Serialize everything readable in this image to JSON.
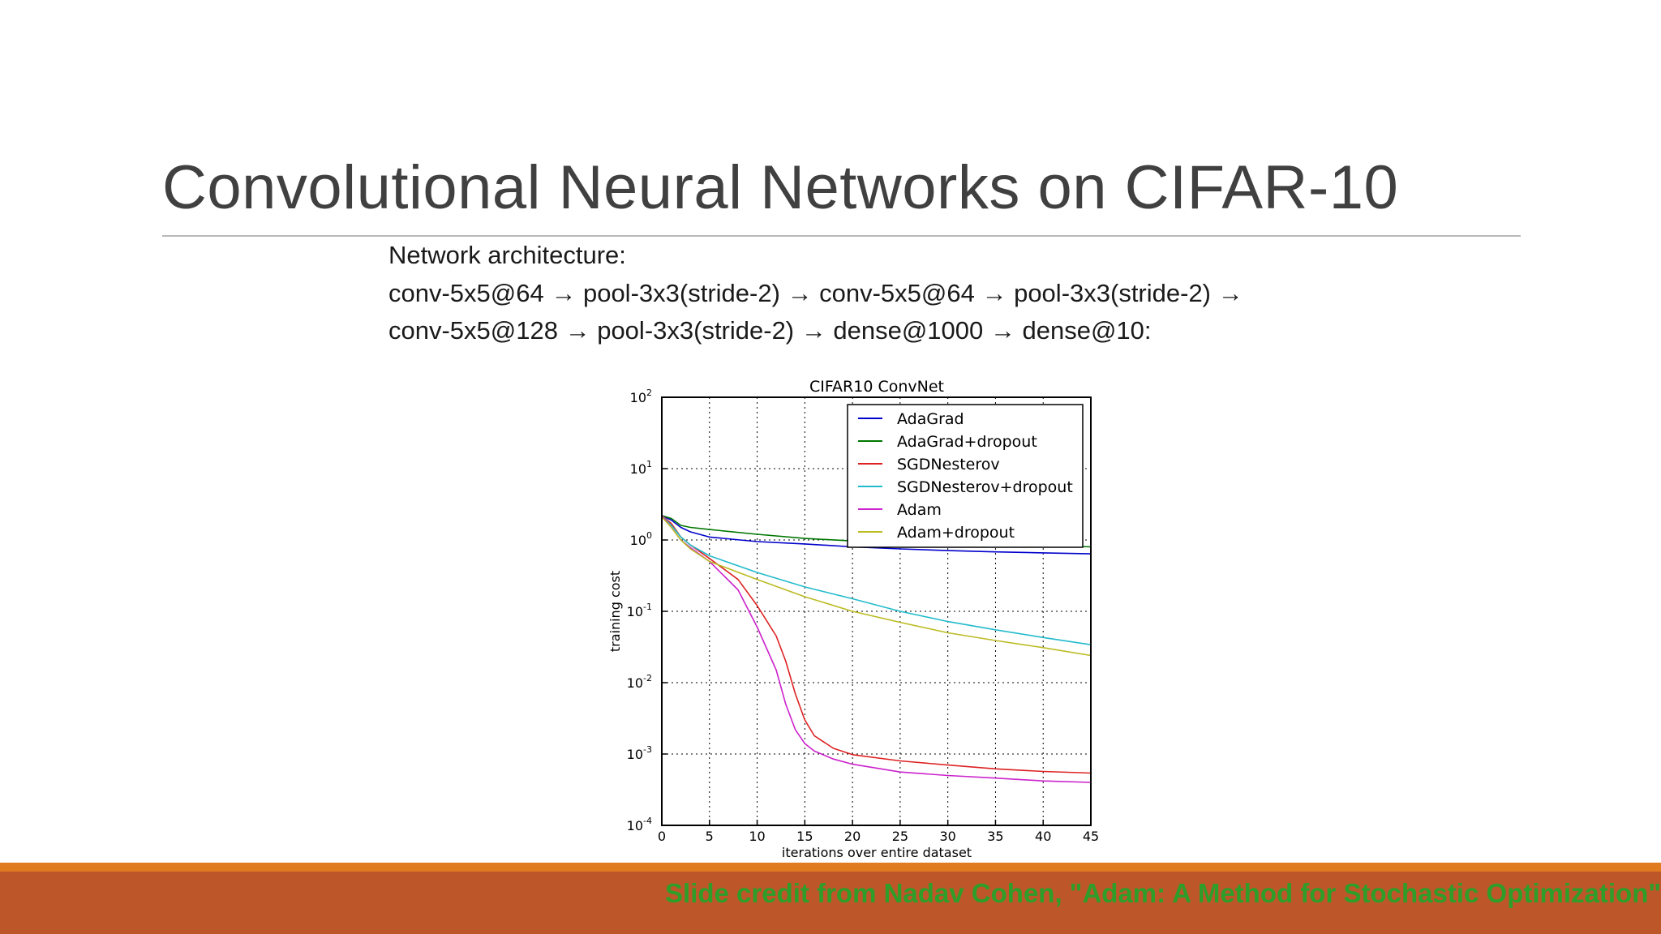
{
  "slide": {
    "title": "Convolutional Neural Networks on CIFAR-10",
    "arch_heading": "Network architecture:",
    "arch_line1": "conv-5x5@64 → pool-3x3(stride-2) → conv-5x5@64 → pool-3x3(stride-2) →",
    "arch_line2": "conv-5x5@128 → pool-3x3(stride-2) → dense@1000 → dense@10:",
    "credit": "Slide credit from Nadav Cohen, \"Adam: A Method for Stochastic Optimization\""
  },
  "colors": {
    "title": "#404040",
    "footer_band": "#bd572a",
    "footer_stripe": "#e07b1f",
    "credit_text": "#2e9d2a"
  },
  "chart_data": {
    "type": "line",
    "title": "CIFAR10 ConvNet",
    "xlabel": "iterations over entire dataset",
    "ylabel": "training cost",
    "xlim": [
      0,
      45
    ],
    "ylim": [
      0.0001,
      100
    ],
    "yscale": "log",
    "grid": true,
    "legend_position": "top-right",
    "x_ticks": [
      "0",
      "5",
      "10",
      "15",
      "20",
      "25",
      "30",
      "35",
      "40",
      "45"
    ],
    "y_ticks": [
      {
        "base": "10",
        "exp": "2",
        "value": 100
      },
      {
        "base": "10",
        "exp": "1",
        "value": 10
      },
      {
        "base": "10",
        "exp": "0",
        "value": 1
      },
      {
        "base": "10",
        "exp": "-1",
        "value": 0.1
      },
      {
        "base": "10",
        "exp": "-2",
        "value": 0.01
      },
      {
        "base": "10",
        "exp": "-3",
        "value": 0.001
      },
      {
        "base": "10",
        "exp": "-4",
        "value": 0.0001
      }
    ],
    "series": [
      {
        "name": "AdaGrad",
        "color": "#0000cc",
        "x": [
          0,
          1,
          2,
          3,
          5,
          10,
          15,
          20,
          25,
          30,
          35,
          40,
          45
        ],
        "y": [
          2.2,
          1.9,
          1.5,
          1.3,
          1.1,
          0.95,
          0.88,
          0.8,
          0.75,
          0.71,
          0.68,
          0.66,
          0.64
        ]
      },
      {
        "name": "AdaGrad+dropout",
        "color": "#007700",
        "x": [
          0,
          1,
          2,
          3,
          5,
          10,
          15,
          20,
          25,
          30,
          35,
          40,
          45
        ],
        "y": [
          2.2,
          2.0,
          1.6,
          1.5,
          1.4,
          1.2,
          1.05,
          0.97,
          0.93,
          0.9,
          0.87,
          0.84,
          0.8
        ]
      },
      {
        "name": "SGDNesterov",
        "color": "#dd2222",
        "x": [
          0,
          1,
          2,
          3,
          5,
          8,
          10,
          12,
          13,
          14,
          15,
          16,
          18,
          20,
          25,
          30,
          35,
          40,
          45
        ],
        "y": [
          2.2,
          1.7,
          1.1,
          0.85,
          0.55,
          0.28,
          0.12,
          0.045,
          0.02,
          0.007,
          0.003,
          0.0018,
          0.0012,
          0.00098,
          0.0008,
          0.0007,
          0.00062,
          0.00057,
          0.00054
        ]
      },
      {
        "name": "SGDNesterov+dropout",
        "color": "#22bbcc",
        "x": [
          0,
          1,
          2,
          3,
          5,
          10,
          15,
          20,
          25,
          30,
          35,
          40,
          45
        ],
        "y": [
          2.2,
          1.6,
          1.1,
          0.85,
          0.6,
          0.35,
          0.22,
          0.15,
          0.1,
          0.072,
          0.055,
          0.043,
          0.034
        ]
      },
      {
        "name": "Adam",
        "color": "#cc22cc",
        "x": [
          0,
          1,
          2,
          3,
          5,
          8,
          10,
          12,
          13,
          14,
          15,
          16,
          18,
          20,
          25,
          30,
          35,
          40,
          45
        ],
        "y": [
          2.2,
          1.5,
          1.0,
          0.78,
          0.5,
          0.2,
          0.06,
          0.015,
          0.005,
          0.0022,
          0.0014,
          0.0011,
          0.00085,
          0.00072,
          0.00056,
          0.0005,
          0.00046,
          0.00042,
          0.0004
        ]
      },
      {
        "name": "Adam+dropout",
        "color": "#bbbb22",
        "x": [
          0,
          1,
          2,
          3,
          5,
          10,
          15,
          20,
          25,
          30,
          35,
          40,
          45
        ],
        "y": [
          2.1,
          1.5,
          1.0,
          0.75,
          0.5,
          0.28,
          0.16,
          0.1,
          0.07,
          0.05,
          0.039,
          0.031,
          0.024
        ]
      }
    ]
  }
}
